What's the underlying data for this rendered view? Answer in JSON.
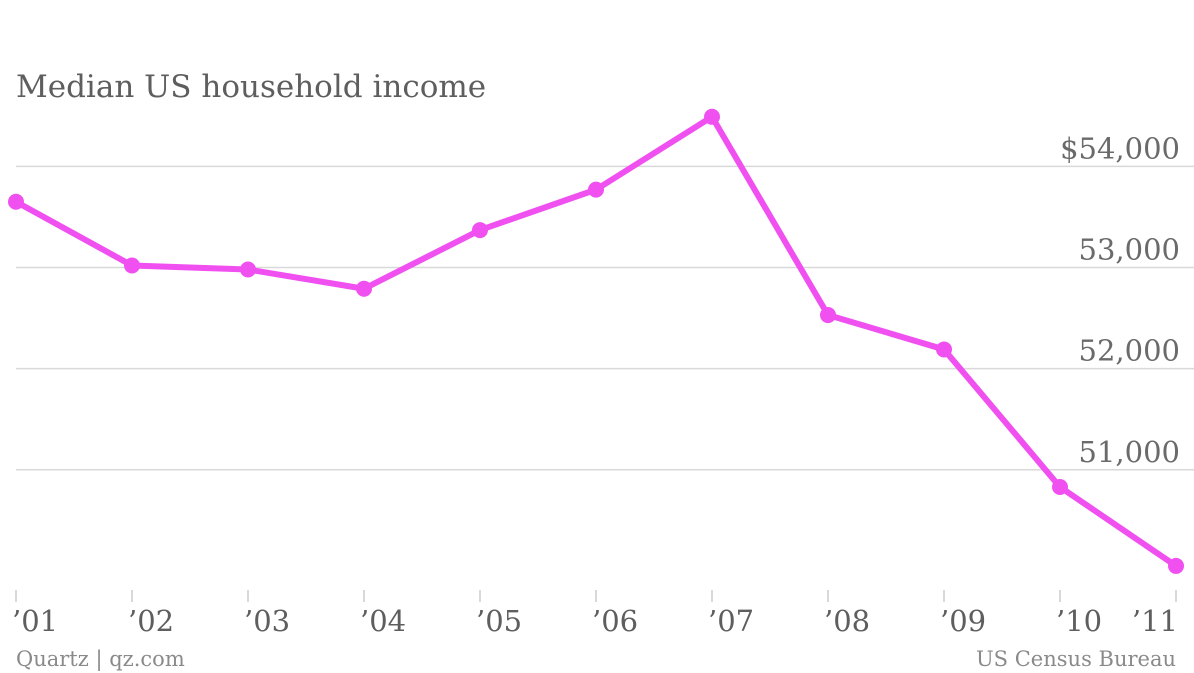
{
  "chart_data": {
    "type": "line",
    "title": "Median US household income",
    "x": [
      "’01",
      "’02",
      "’03",
      "’04",
      "’05",
      "’06",
      "’07",
      "’08",
      "’09",
      "’10",
      "’11"
    ],
    "series": [
      {
        "values": [
          53650,
          53020,
          52980,
          52790,
          53370,
          53770,
          54490,
          52530,
          52190,
          50830,
          50050
        ]
      }
    ],
    "y_ticks": [
      51000,
      52000,
      53000,
      54000
    ],
    "y_tick_labels": [
      "51,000",
      "52,000",
      "53,000",
      "$54,000"
    ],
    "ylim": [
      49970,
      55170
    ],
    "grid": true,
    "y_axis_side": "right",
    "colors": {
      "series": "#f050f0",
      "grid": "#d9d9d9",
      "text": "#5e5e5e"
    }
  },
  "footer": {
    "left": "Quartz | qz.com",
    "right": "US Census Bureau"
  }
}
